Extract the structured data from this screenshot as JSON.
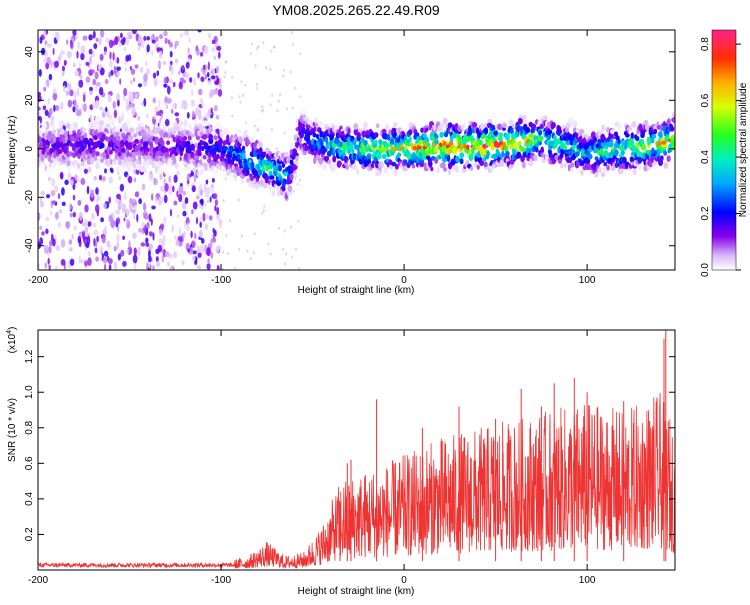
{
  "title": "YM08.2025.265.22.49.R09",
  "chart_data": [
    {
      "type": "heatmap",
      "xlabel": "Height of straight line (km)",
      "ylabel": "Frequency (Hz)",
      "xlim": [
        -200,
        148
      ],
      "ylim": [
        -50,
        49
      ],
      "xticks": [
        "-200",
        "-100",
        "0",
        "100"
      ],
      "yticks": [
        "40",
        "20",
        "0",
        "-20",
        "-40"
      ],
      "colorbar": {
        "label": "Normalized spectral amplitude",
        "range": [
          0,
          0.85
        ],
        "ticks": [
          "0.0",
          "0.2",
          "0.4",
          "0.6",
          "0.8"
        ]
      },
      "ridge": {
        "x": [
          -200,
          -170,
          -150,
          -120,
          -100,
          -90,
          -80,
          -70,
          -64,
          -60,
          -57,
          -50,
          -40,
          -30,
          -20,
          -10,
          0,
          20,
          40,
          60,
          75,
          90,
          100,
          120,
          140,
          148
        ],
        "y": [
          1,
          2,
          1,
          1,
          0,
          -3,
          -6,
          -9,
          -12,
          -5,
          7,
          3,
          1,
          0,
          0,
          0,
          0,
          1,
          1,
          2,
          4,
          1,
          -2,
          0,
          2,
          4
        ],
        "amplitude": [
          0.15,
          0.2,
          0.15,
          0.2,
          0.25,
          0.35,
          0.45,
          0.5,
          0.4,
          0.2,
          0.2,
          0.3,
          0.45,
          0.5,
          0.55,
          0.6,
          0.65,
          0.75,
          0.8,
          0.85,
          0.5,
          0.45,
          0.4,
          0.55,
          0.65,
          0.7
        ]
      },
      "noise_region_x": [
        -200,
        -100
      ],
      "sparse_region_x": [
        -100,
        -55
      ]
    },
    {
      "type": "line",
      "xlabel": "Height of straight line (km)",
      "ylabel": "SNR (10 * v/v)",
      "yscale_label": "(x10",
      "yscale_exp": "4",
      "yscale_close": ")",
      "xlim": [
        -200,
        148
      ],
      "ylim": [
        0,
        1.35
      ],
      "xticks": [
        "-200",
        "-100",
        "0",
        "100"
      ],
      "yticks": [
        "0.2",
        "0.4",
        "0.6",
        "0.8",
        "1.0",
        "1.2"
      ],
      "series": [
        {
          "color": "#ee3333",
          "envelope_x": [
            -200,
            -120,
            -100,
            -85,
            -75,
            -65,
            -55,
            -45,
            -35,
            -25,
            -10,
            0,
            20,
            40,
            60,
            80,
            100,
            120,
            140,
            148
          ],
          "envelope_y": [
            0.03,
            0.03,
            0.04,
            0.08,
            0.16,
            0.08,
            0.1,
            0.25,
            0.5,
            0.55,
            0.6,
            0.65,
            0.75,
            0.8,
            0.85,
            0.9,
            0.95,
            0.9,
            1.0,
            0.8
          ],
          "spikes": [
            [
              -29,
              0.62
            ],
            [
              -31,
              0.6
            ],
            [
              -15,
              0.96
            ],
            [
              -35,
              0.38
            ],
            [
              30,
              0.92
            ],
            [
              64,
              1.02
            ],
            [
              82,
              1.05
            ],
            [
              93,
              1.08
            ],
            [
              142,
              1.3
            ],
            [
              143,
              1.35
            ],
            [
              120,
              0.95
            ],
            [
              100,
              1.0
            ],
            [
              50,
              0.85
            ],
            [
              75,
              0.92
            ],
            [
              10,
              0.8
            ]
          ]
        }
      ]
    }
  ]
}
